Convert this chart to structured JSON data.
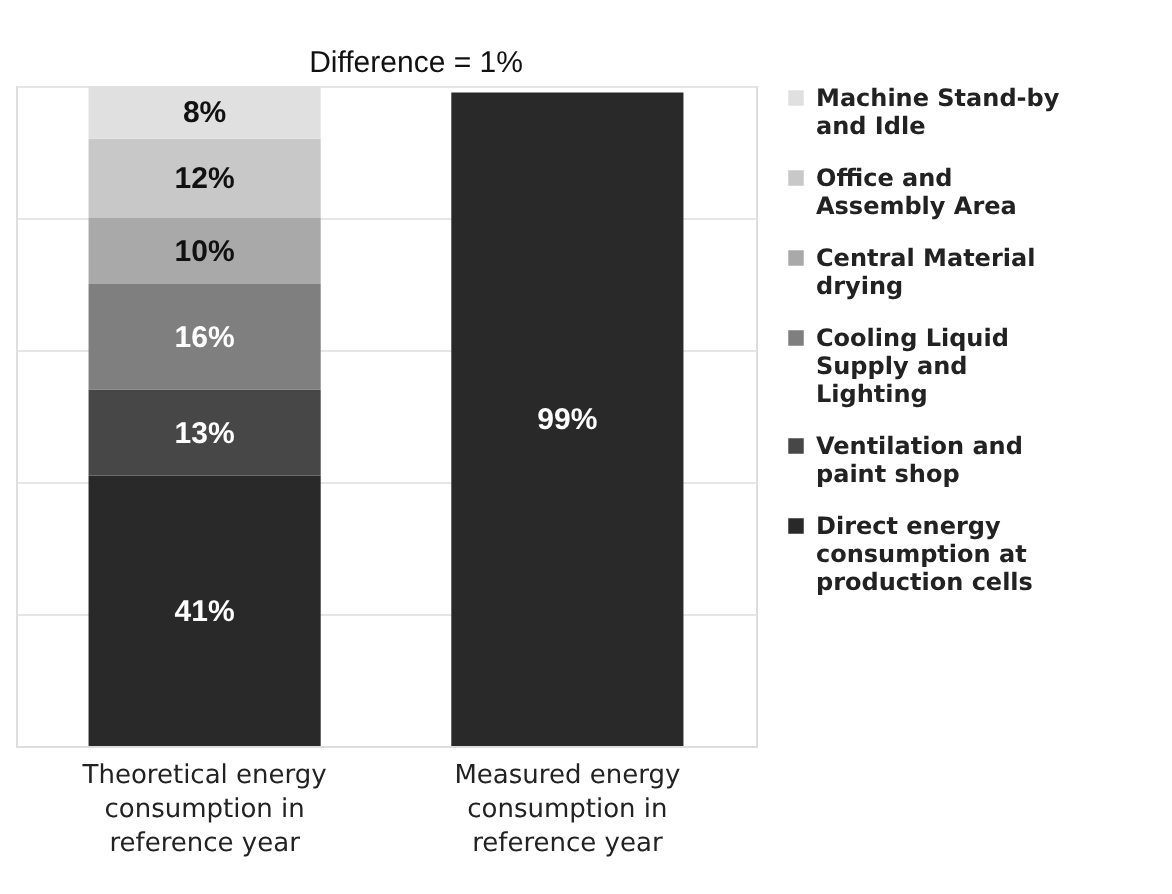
{
  "chart_data": {
    "type": "bar",
    "stacked": true,
    "grid": "y",
    "legend": "right",
    "tick_labels": "x",
    "categories": [
      "Theoretical energy consumption in reference year",
      "Measured energy consumption in reference year"
    ],
    "annotations": [
      "Difference = 1%"
    ],
    "series": [
      {
        "name": "Direct energy consumption at production cells",
        "color": "#292929",
        "values": [
          41,
          99
        ],
        "value_labels": [
          "41%",
          "99%"
        ]
      },
      {
        "name": "Ventilation and paint shop",
        "color": "#474747",
        "values": [
          13,
          null
        ],
        "value_labels": [
          "13%",
          null
        ]
      },
      {
        "name": "Cooling Liquid Supply and Lighting",
        "color": "#7f7f7f",
        "values": [
          16,
          null
        ],
        "value_labels": [
          "16%",
          null
        ]
      },
      {
        "name": "Central Material drying",
        "color": "#a9a9a9",
        "values": [
          10,
          null
        ],
        "value_labels": [
          "10%",
          null
        ]
      },
      {
        "name": "Office and Assembly Area",
        "color": "#c8c8c8",
        "values": [
          12,
          null
        ],
        "value_labels": [
          "12%",
          null
        ]
      },
      {
        "name": "Machine Stand-by and Idle",
        "color": "#e0e0e0",
        "values": [
          8,
          null
        ],
        "value_labels": [
          "8%",
          null
        ]
      }
    ]
  }
}
